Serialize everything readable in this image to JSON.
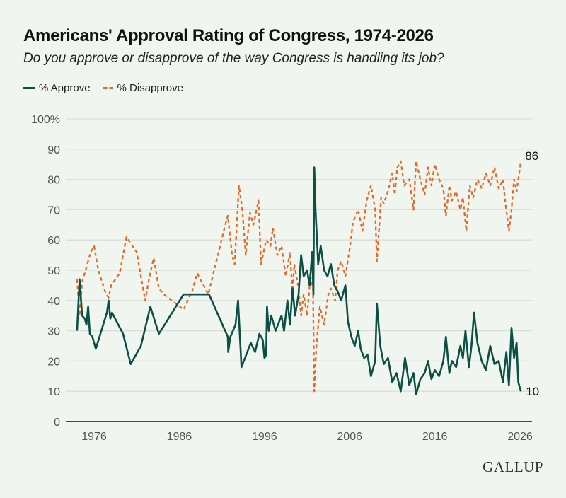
{
  "chart_data": {
    "type": "line",
    "title": "Americans' Approval Rating of Congress, 1974-2026",
    "subtitle": "Do you approve or disapprove of the way Congress is handling its job?",
    "xlabel": "",
    "ylabel": "",
    "ylim": [
      0,
      100
    ],
    "xlim": [
      1973,
      2028
    ],
    "y_ticks": [
      "0",
      "10",
      "20",
      "30",
      "40",
      "50",
      "60",
      "70",
      "80",
      "90",
      "100%"
    ],
    "x_ticks": [
      "1976",
      "1986",
      "1996",
      "2006",
      "2016",
      "2026"
    ],
    "grid": true,
    "legend": "top-left",
    "end_labels": {
      "approve": "10",
      "disapprove": "86"
    },
    "series": [
      {
        "name": "% Approve",
        "color": "#0b4f45",
        "style": "solid",
        "x": [
          1974.0,
          1974.3,
          1974.6,
          1974.9,
          1975.1,
          1975.3,
          1975.5,
          1975.8,
          1976.2,
          1977.5,
          1977.7,
          1977.9,
          1978.1,
          1979.4,
          1980.3,
          1981.5,
          1982.6,
          1983.6,
          1984.5,
          1986.5,
          1989.5,
          1991.7,
          1991.75,
          1992.0,
          1992.6,
          1992.9,
          1993.3,
          1994.4,
          1994.9,
          1995.4,
          1995.8,
          1996.0,
          1996.2,
          1996.3,
          1996.5,
          1996.8,
          1997.3,
          1998.0,
          1998.3,
          1998.7,
          1999.0,
          1999.3,
          1999.6,
          2000.0,
          2000.3,
          2000.6,
          2001.0,
          2001.3,
          2001.6,
          2001.75,
          2001.85,
          2002.0,
          2002.3,
          2002.6,
          2003.0,
          2003.4,
          2003.8,
          2004.2,
          2004.6,
          2005.0,
          2005.5,
          2005.8,
          2006.2,
          2006.6,
          2007.0,
          2007.3,
          2007.7,
          2008.1,
          2008.5,
          2009.0,
          2009.2,
          2009.6,
          2010.0,
          2010.5,
          2011.0,
          2011.5,
          2012.0,
          2012.5,
          2013.0,
          2013.5,
          2013.8,
          2014.3,
          2014.8,
          2015.2,
          2015.6,
          2016.0,
          2016.5,
          2017.0,
          2017.3,
          2017.7,
          2018.0,
          2018.5,
          2019.0,
          2019.3,
          2019.6,
          2020.0,
          2020.3,
          2020.6,
          2021.0,
          2021.5,
          2022.0,
          2022.5,
          2023.0,
          2023.5,
          2024.0,
          2024.4,
          2024.7,
          2025.0,
          2025.3,
          2025.6,
          2025.8,
          2026.1
        ],
        "values": [
          30,
          47,
          35,
          34,
          32,
          38,
          29,
          28,
          24,
          36,
          40,
          34,
          36,
          29,
          19,
          25,
          38,
          29,
          33,
          42,
          42,
          28,
          23,
          28,
          32,
          40,
          18,
          26,
          23,
          29,
          27,
          21,
          22,
          38,
          30,
          35,
          30,
          35,
          30,
          40,
          32,
          44,
          35,
          42,
          55,
          48,
          50,
          45,
          56,
          42,
          84,
          70,
          52,
          58,
          50,
          48,
          52,
          45,
          43,
          40,
          45,
          33,
          28,
          25,
          30,
          24,
          21,
          22,
          15,
          20,
          39,
          25,
          19,
          21,
          13,
          16,
          10,
          21,
          12,
          16,
          9,
          14,
          16,
          20,
          14,
          17,
          15,
          20,
          28,
          16,
          20,
          18,
          25,
          21,
          30,
          18,
          25,
          36,
          26,
          20,
          17,
          25,
          19,
          20,
          13,
          23,
          12,
          31,
          21,
          26,
          13,
          10
        ]
      },
      {
        "name": "% Disapprove",
        "color": "#e06a2b",
        "style": "dashed",
        "x": [
          1974.0,
          1974.3,
          1974.6,
          1975.0,
          1975.6,
          1976.0,
          1976.5,
          1977.4,
          1977.7,
          1978.0,
          1979.0,
          1979.8,
          1980.5,
          1981.0,
          1982.0,
          1982.5,
          1983.0,
          1983.6,
          1984.2,
          1986.5,
          1987.5,
          1988.1,
          1989.4,
          1991.4,
          1991.7,
          1992.2,
          1992.5,
          1993.0,
          1993.4,
          1993.8,
          1994.3,
          1994.7,
          1995.3,
          1995.6,
          1996.2,
          1996.7,
          1997.0,
          1997.5,
          1998.0,
          1998.5,
          1999.0,
          1999.3,
          1999.5,
          2000.0,
          2000.3,
          2000.6,
          2001.0,
          2001.4,
          2001.7,
          2001.85,
          2002.1,
          2002.5,
          2003.0,
          2003.5,
          2003.8,
          2004.3,
          2004.6,
          2005.0,
          2005.5,
          2006.0,
          2006.4,
          2007.0,
          2007.5,
          2008.0,
          2008.5,
          2009.0,
          2009.2,
          2009.7,
          2010.0,
          2010.5,
          2011.0,
          2011.3,
          2011.6,
          2012.0,
          2012.4,
          2013.0,
          2013.5,
          2013.8,
          2014.3,
          2014.8,
          2015.2,
          2015.6,
          2016.0,
          2016.5,
          2017.0,
          2017.3,
          2017.7,
          2018.0,
          2018.5,
          2019.0,
          2019.3,
          2019.7,
          2020.1,
          2020.5,
          2021.0,
          2021.5,
          2022.0,
          2022.5,
          2023.0,
          2023.5,
          2024.0,
          2024.3,
          2024.7,
          2025.0,
          2025.3,
          2025.6,
          2026.1
        ],
        "values": [
          47,
          35,
          46,
          50,
          56,
          58,
          50,
          42,
          41,
          45,
          49,
          61,
          58,
          56,
          40,
          48,
          54,
          44,
          42,
          37,
          43,
          49,
          42,
          65,
          68,
          55,
          52,
          78,
          70,
          55,
          69,
          65,
          73,
          52,
          60,
          58,
          64,
          55,
          58,
          48,
          56,
          42,
          52,
          44,
          35,
          42,
          35,
          48,
          44,
          10,
          25,
          38,
          32,
          42,
          44,
          40,
          50,
          53,
          48,
          57,
          66,
          70,
          63,
          73,
          78,
          70,
          53,
          74,
          72,
          76,
          82,
          75,
          84,
          86,
          78,
          80,
          70,
          86,
          80,
          75,
          84,
          78,
          85,
          80,
          77,
          68,
          78,
          73,
          76,
          70,
          74,
          63,
          78,
          74,
          80,
          77,
          82,
          78,
          84,
          77,
          80,
          72,
          63,
          70,
          80,
          76,
          86
        ]
      }
    ]
  },
  "brand": "GALLUP"
}
